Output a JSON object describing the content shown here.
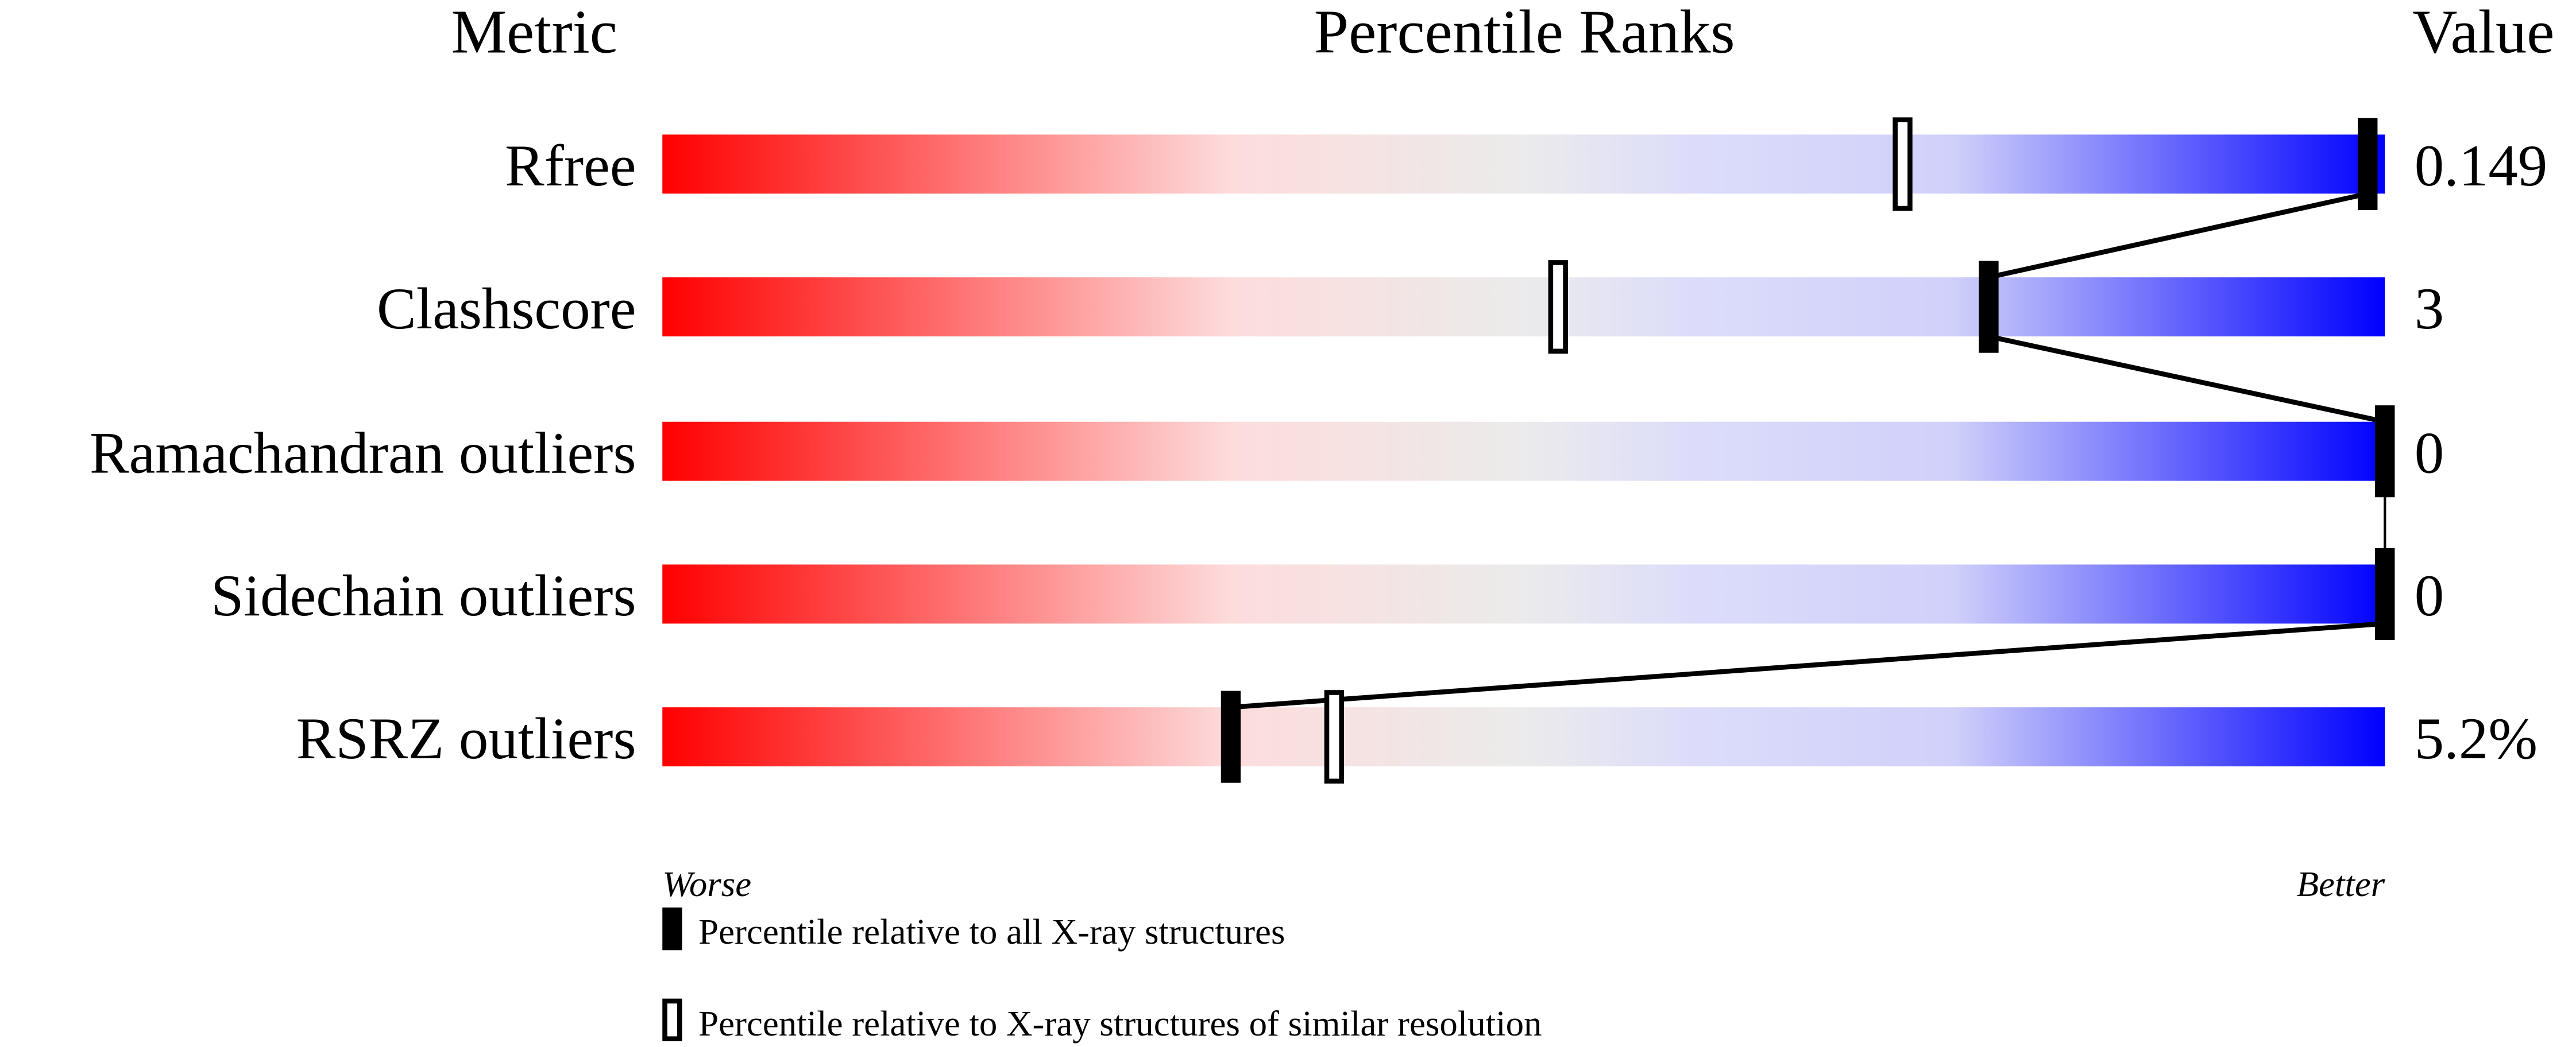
{
  "chart_data": {
    "type": "percentile-slider",
    "headers": {
      "metric": "Metric",
      "percentile": "Percentile Ranks",
      "value": "Value"
    },
    "xlim": [
      0,
      100
    ],
    "axis_left_label": "Worse",
    "axis_right_label": "Better",
    "metrics": [
      {
        "name": "Rfree",
        "value": "0.149",
        "percentile_all": 99,
        "percentile_similar": 72
      },
      {
        "name": "Clashscore",
        "value": "3",
        "percentile_all": 77,
        "percentile_similar": 52
      },
      {
        "name": "Ramachandran outliers",
        "value": "0",
        "percentile_all": 100,
        "percentile_similar": 100
      },
      {
        "name": "Sidechain outliers",
        "value": "0",
        "percentile_all": 100,
        "percentile_similar": 100
      },
      {
        "name": "RSRZ outliers",
        "value": "5.2%",
        "percentile_all": 33,
        "percentile_similar": 39
      }
    ],
    "legend": [
      {
        "marker": "filled",
        "label": "Percentile relative to all X-ray structures"
      },
      {
        "marker": "open",
        "label": "Percentile relative to X-ray structures of similar resolution"
      }
    ],
    "gradient_colors": [
      "#ff0000",
      "#fddcdc",
      "#ebebeb",
      "#dcdcfa",
      "#d0d0fa",
      "#0000ff"
    ]
  }
}
